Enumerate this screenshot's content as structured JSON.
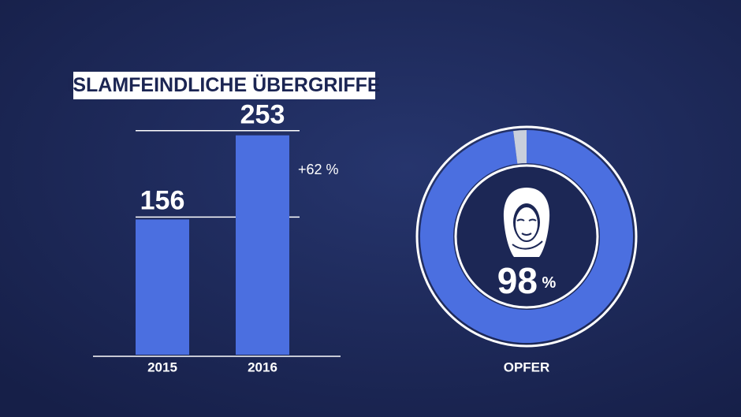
{
  "chart_data": [
    {
      "type": "bar",
      "title": "ISLAMFEINDLICHE ÜBERGRIFFE",
      "categories": [
        "2015",
        "2016"
      ],
      "values": [
        156,
        253
      ],
      "color": "#4b6fe0",
      "annotation": "+62 %"
    },
    {
      "type": "pie",
      "title": "OPFER",
      "values": [
        98,
        2
      ],
      "value_labels": [
        "98 %",
        null
      ],
      "colors": [
        "#4b6fe0",
        "#c9cfdc"
      ],
      "donut": true
    }
  ]
}
